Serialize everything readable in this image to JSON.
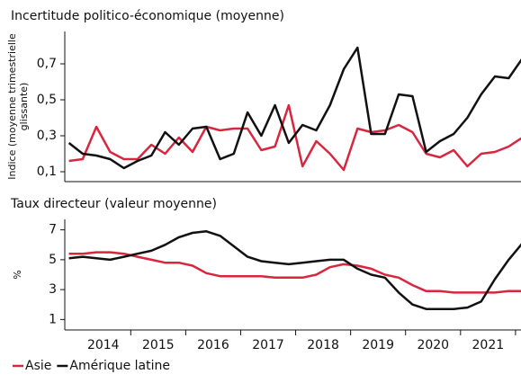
{
  "chart_data": [
    {
      "type": "line",
      "title": "Incertitude politico-économique (moyenne)",
      "ylabel": [
        "Indice (moyenne trimestrielle",
        "glissante)"
      ],
      "x": [
        2013.875,
        2014.125,
        2014.375,
        2014.625,
        2014.875,
        2015.125,
        2015.375,
        2015.625,
        2015.875,
        2016.125,
        2016.375,
        2016.625,
        2016.875,
        2017.125,
        2017.375,
        2017.625,
        2017.875,
        2018.125,
        2018.375,
        2018.625,
        2018.875,
        2019.125,
        2019.375,
        2019.625,
        2019.875,
        2020.125,
        2020.375,
        2020.625,
        2020.875,
        2021.125,
        2021.375,
        2021.625,
        2021.875,
        2022.125
      ],
      "xlim": [
        2013.8,
        2022.1
      ],
      "ylim": [
        0.045,
        0.88
      ],
      "yticks": [
        {
          "value": 0.1,
          "label": "0,1"
        },
        {
          "value": 0.3,
          "label": "0,3"
        },
        {
          "value": 0.5,
          "label": "0,5"
        },
        {
          "value": 0.7,
          "label": "0,7"
        }
      ],
      "series": [
        {
          "color": "#d9263f",
          "values": [
            0.16,
            0.17,
            0.35,
            0.21,
            0.17,
            0.17,
            0.25,
            0.2,
            0.29,
            0.21,
            0.35,
            0.33,
            0.34,
            0.34,
            0.22,
            0.24,
            0.47,
            0.13,
            0.27,
            0.2,
            0.11,
            0.34,
            0.32,
            0.33,
            0.36,
            0.32,
            0.2,
            0.18,
            0.22,
            0.13,
            0.2,
            0.21,
            0.24,
            0.29
          ]
        },
        {
          "color": "#111111",
          "values": [
            0.26,
            0.2,
            0.19,
            0.17,
            0.12,
            0.16,
            0.19,
            0.32,
            0.25,
            0.34,
            0.35,
            0.17,
            0.2,
            0.43,
            0.3,
            0.47,
            0.26,
            0.36,
            0.33,
            0.47,
            0.67,
            0.79,
            0.31,
            0.31,
            0.53,
            0.52,
            0.21,
            0.27,
            0.31,
            0.4,
            0.53,
            0.63,
            0.62,
            0.73
          ]
        }
      ]
    },
    {
      "type": "line",
      "title": "Taux directeur (valeur moyenne)",
      "ylabel": [
        "%"
      ],
      "x": [
        2013.875,
        2014.125,
        2014.375,
        2014.625,
        2014.875,
        2015.125,
        2015.375,
        2015.625,
        2015.875,
        2016.125,
        2016.375,
        2016.625,
        2016.875,
        2017.125,
        2017.375,
        2017.625,
        2017.875,
        2018.125,
        2018.375,
        2018.625,
        2018.875,
        2019.125,
        2019.375,
        2019.625,
        2019.875,
        2020.125,
        2020.375,
        2020.625,
        2020.875,
        2021.125,
        2021.375,
        2021.625,
        2021.875,
        2022.125
      ],
      "xlim": [
        2013.8,
        2022.1
      ],
      "xticks": [
        {
          "value": 2014.5,
          "label": "2014"
        },
        {
          "value": 2015.5,
          "label": "2015"
        },
        {
          "value": 2016.5,
          "label": "2016"
        },
        {
          "value": 2017.5,
          "label": "2017"
        },
        {
          "value": 2018.5,
          "label": "2018"
        },
        {
          "value": 2019.5,
          "label": "2019"
        },
        {
          "value": 2020.5,
          "label": "2020"
        },
        {
          "value": 2021.5,
          "label": "2021"
        }
      ],
      "ylim": [
        0.3,
        7.7
      ],
      "yticks": [
        1,
        3,
        5,
        7
      ],
      "series": [
        {
          "name": "Asie",
          "color": "#d9263f",
          "values": [
            5.4,
            5.4,
            5.5,
            5.5,
            5.4,
            5.2,
            5.0,
            4.8,
            4.8,
            4.6,
            4.1,
            3.9,
            3.9,
            3.9,
            3.9,
            3.8,
            3.8,
            3.8,
            4.0,
            4.5,
            4.7,
            4.6,
            4.4,
            4.0,
            3.8,
            3.3,
            2.9,
            2.9,
            2.8,
            2.8,
            2.8,
            2.8,
            2.9,
            2.9
          ]
        },
        {
          "name": "Amérique latine",
          "color": "#111111",
          "values": [
            5.1,
            5.2,
            5.1,
            5.0,
            5.2,
            5.4,
            5.6,
            6.0,
            6.5,
            6.8,
            6.9,
            6.6,
            5.9,
            5.2,
            4.9,
            4.8,
            4.7,
            4.8,
            4.9,
            5.0,
            5.0,
            4.4,
            4.0,
            3.8,
            2.8,
            2.0,
            1.7,
            1.7,
            1.7,
            1.8,
            2.2,
            3.7,
            5.0,
            6.1
          ]
        }
      ]
    }
  ]
}
